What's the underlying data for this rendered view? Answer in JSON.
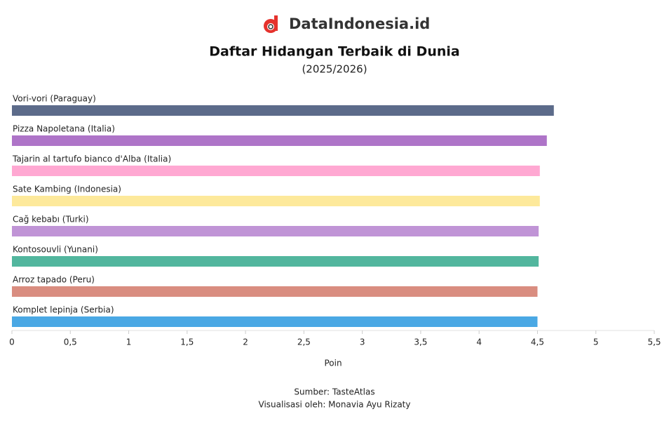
{
  "header": {
    "logo": "DataIndonesia.id"
  },
  "chart_data": {
    "type": "bar",
    "orientation": "horizontal",
    "title": "Daftar Hidangan Terbaik di Dunia",
    "subtitle": "(2025/2026)",
    "categories": [
      "Vori-vori (Paraguay)",
      "Pizza Napoletana (Italia)",
      "Tajarin al tartufo bianco d'Alba (Italia)",
      "Sate Kambing (Indonesia)",
      "Cağ kebabı (Turki)",
      "Kontosouvli (Yunani)",
      "Arroz tapado (Peru)",
      "Komplet lepinja (Serbia)"
    ],
    "values": [
      4.64,
      4.58,
      4.52,
      4.52,
      4.51,
      4.51,
      4.5,
      4.5
    ],
    "colors": [
      "#5c6b8a",
      "#ae74c8",
      "#ffa8d2",
      "#fde99b",
      "#c094d6",
      "#52b69e",
      "#d98d80",
      "#4aa8e4"
    ],
    "xlim": [
      0,
      5.5
    ],
    "xticks": [
      0,
      {
        "value": 0.5,
        "label": "0,5"
      },
      1,
      {
        "value": 1.5,
        "label": "1,5"
      },
      2,
      {
        "value": 2.5,
        "label": "2,5"
      },
      3,
      {
        "value": 3.5,
        "label": "3,5"
      },
      4,
      {
        "value": 4.5,
        "label": "4,5"
      },
      5,
      {
        "value": 5.5,
        "label": "5,5"
      }
    ],
    "xlabel": "Poin",
    "source": "Sumber: TasteAtlas",
    "credit": "Visualisasi oleh: Monavia Ayu Rizaty"
  }
}
